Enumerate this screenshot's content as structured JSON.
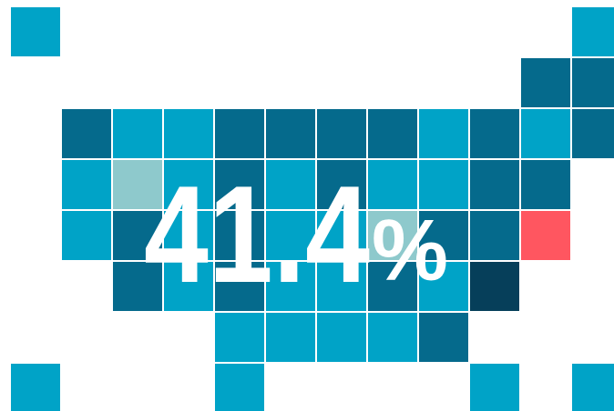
{
  "colors": {
    "cyan": "#00a3c7",
    "teal": "#056a8c",
    "navy": "#063f5a",
    "pale": "#8ec9cc",
    "red": "#ff5660",
    "background": "#ffffff",
    "text": "#ffffff"
  },
  "tile_grid": {
    "columns": 12,
    "rows": 8,
    "tiles": [
      {
        "col": 0,
        "row": 0,
        "fill": "cyan"
      },
      {
        "col": 11,
        "row": 0,
        "fill": "cyan"
      },
      {
        "col": 10,
        "row": 1,
        "fill": "teal"
      },
      {
        "col": 11,
        "row": 1,
        "fill": "teal"
      },
      {
        "col": 1,
        "row": 2,
        "fill": "teal"
      },
      {
        "col": 2,
        "row": 2,
        "fill": "cyan"
      },
      {
        "col": 3,
        "row": 2,
        "fill": "cyan"
      },
      {
        "col": 4,
        "row": 2,
        "fill": "teal"
      },
      {
        "col": 5,
        "row": 2,
        "fill": "teal"
      },
      {
        "col": 6,
        "row": 2,
        "fill": "teal"
      },
      {
        "col": 7,
        "row": 2,
        "fill": "teal"
      },
      {
        "col": 8,
        "row": 2,
        "fill": "cyan"
      },
      {
        "col": 9,
        "row": 2,
        "fill": "teal"
      },
      {
        "col": 10,
        "row": 2,
        "fill": "cyan"
      },
      {
        "col": 11,
        "row": 2,
        "fill": "teal"
      },
      {
        "col": 1,
        "row": 3,
        "fill": "cyan"
      },
      {
        "col": 2,
        "row": 3,
        "fill": "pale"
      },
      {
        "col": 3,
        "row": 3,
        "fill": "cyan"
      },
      {
        "col": 4,
        "row": 3,
        "fill": "teal"
      },
      {
        "col": 5,
        "row": 3,
        "fill": "cyan"
      },
      {
        "col": 6,
        "row": 3,
        "fill": "teal"
      },
      {
        "col": 7,
        "row": 3,
        "fill": "cyan"
      },
      {
        "col": 8,
        "row": 3,
        "fill": "cyan"
      },
      {
        "col": 9,
        "row": 3,
        "fill": "teal"
      },
      {
        "col": 10,
        "row": 3,
        "fill": "teal"
      },
      {
        "col": 1,
        "row": 4,
        "fill": "cyan"
      },
      {
        "col": 2,
        "row": 4,
        "fill": "teal"
      },
      {
        "col": 3,
        "row": 4,
        "fill": "cyan"
      },
      {
        "col": 4,
        "row": 4,
        "fill": "teal"
      },
      {
        "col": 5,
        "row": 4,
        "fill": "cyan"
      },
      {
        "col": 6,
        "row": 4,
        "fill": "cyan"
      },
      {
        "col": 7,
        "row": 4,
        "fill": "pale"
      },
      {
        "col": 8,
        "row": 4,
        "fill": "teal"
      },
      {
        "col": 9,
        "row": 4,
        "fill": "teal"
      },
      {
        "col": 10,
        "row": 4,
        "fill": "red"
      },
      {
        "col": 2,
        "row": 5,
        "fill": "teal"
      },
      {
        "col": 3,
        "row": 5,
        "fill": "cyan"
      },
      {
        "col": 4,
        "row": 5,
        "fill": "teal"
      },
      {
        "col": 5,
        "row": 5,
        "fill": "cyan"
      },
      {
        "col": 6,
        "row": 5,
        "fill": "cyan"
      },
      {
        "col": 7,
        "row": 5,
        "fill": "teal"
      },
      {
        "col": 8,
        "row": 5,
        "fill": "cyan"
      },
      {
        "col": 9,
        "row": 5,
        "fill": "navy"
      },
      {
        "col": 4,
        "row": 6,
        "fill": "cyan"
      },
      {
        "col": 5,
        "row": 6,
        "fill": "cyan"
      },
      {
        "col": 6,
        "row": 6,
        "fill": "cyan"
      },
      {
        "col": 7,
        "row": 6,
        "fill": "cyan"
      },
      {
        "col": 8,
        "row": 6,
        "fill": "teal"
      },
      {
        "col": 0,
        "row": 7,
        "fill": "cyan"
      },
      {
        "col": 4,
        "row": 7,
        "fill": "cyan"
      },
      {
        "col": 9,
        "row": 7,
        "fill": "cyan"
      },
      {
        "col": 11,
        "row": 7,
        "fill": "cyan"
      }
    ]
  },
  "stat": {
    "number": "41.4",
    "unit": "%"
  }
}
